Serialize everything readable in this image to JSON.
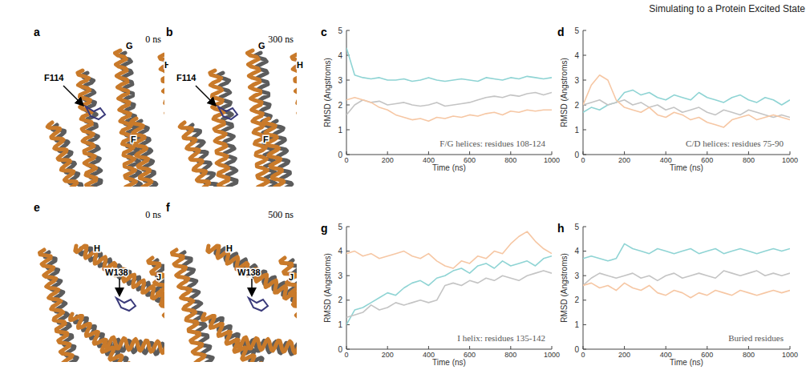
{
  "header": "Simulating to a Protein Excited State",
  "images": [
    {
      "letter": "a",
      "time": "0 ns",
      "labels": [
        "F114",
        "G",
        "H",
        "F"
      ]
    },
    {
      "letter": "b",
      "time": "300 ns",
      "labels": [
        "F114",
        "G",
        "H",
        "F"
      ]
    },
    {
      "letter": "e",
      "time": "0 ns",
      "labels": [
        "H",
        "W138",
        "J"
      ]
    },
    {
      "letter": "f",
      "time": "500 ns",
      "labels": [
        "H",
        "W138",
        "J"
      ]
    }
  ],
  "chart_data": [
    {
      "type": "line",
      "panel_label": "c",
      "annotation": "F/G helices: residues 108-124",
      "x_label": "Time (ns)",
      "y_label": "RMSD (Angstroms)",
      "xlim": [
        0,
        1000
      ],
      "xticks": [
        0,
        200,
        400,
        600,
        800,
        1000
      ],
      "ylim": [
        0,
        5
      ],
      "yticks": [
        0,
        1,
        2,
        3,
        4,
        5
      ],
      "x": [
        0,
        40,
        80,
        120,
        160,
        200,
        240,
        280,
        320,
        360,
        400,
        440,
        480,
        520,
        560,
        600,
        640,
        680,
        720,
        760,
        800,
        840,
        880,
        920,
        960,
        1000
      ],
      "series": [
        {
          "color": "#8fd4d4",
          "values": [
            4.3,
            3.2,
            3.1,
            3.05,
            3.1,
            3.0,
            3.0,
            3.05,
            2.95,
            3.0,
            3.1,
            3.0,
            2.95,
            3.0,
            3.05,
            3.0,
            2.95,
            3.1,
            3.05,
            3.0,
            3.1,
            3.05,
            3.15,
            3.1,
            3.05,
            3.1
          ]
        },
        {
          "color": "#c4c4c4",
          "values": [
            1.6,
            2.0,
            2.2,
            2.1,
            2.15,
            2.0,
            2.05,
            2.1,
            2.0,
            1.95,
            2.0,
            2.1,
            1.95,
            2.0,
            2.05,
            2.1,
            2.2,
            2.3,
            2.35,
            2.3,
            2.4,
            2.35,
            2.45,
            2.5,
            2.4,
            2.5
          ]
        },
        {
          "color": "#f6c7a4",
          "values": [
            2.2,
            2.3,
            2.2,
            2.1,
            1.9,
            1.8,
            1.6,
            1.5,
            1.4,
            1.45,
            1.35,
            1.5,
            1.45,
            1.55,
            1.5,
            1.6,
            1.55,
            1.65,
            1.7,
            1.6,
            1.75,
            1.7,
            1.8,
            1.75,
            1.8,
            1.8
          ]
        }
      ]
    },
    {
      "type": "line",
      "panel_label": "d",
      "annotation": "C/D helices: residues 75-90",
      "x_label": "Time (ns)",
      "y_label": "RMSD (Angstroms)",
      "xlim": [
        0,
        1000
      ],
      "xticks": [
        0,
        200,
        400,
        600,
        800,
        1000
      ],
      "ylim": [
        0,
        5
      ],
      "yticks": [
        0,
        1,
        2,
        3,
        4,
        5
      ],
      "x": [
        0,
        40,
        80,
        120,
        160,
        200,
        240,
        280,
        320,
        360,
        400,
        440,
        480,
        520,
        560,
        600,
        640,
        680,
        720,
        760,
        800,
        840,
        880,
        920,
        960,
        1000
      ],
      "series": [
        {
          "color": "#8fd4d4",
          "values": [
            1.7,
            1.9,
            1.8,
            2.0,
            2.1,
            2.5,
            2.6,
            2.4,
            2.5,
            2.3,
            2.2,
            2.4,
            2.3,
            2.2,
            2.5,
            2.3,
            2.2,
            2.1,
            2.3,
            2.4,
            2.2,
            2.1,
            2.3,
            2.2,
            2.0,
            2.2
          ]
        },
        {
          "color": "#c4c4c4",
          "values": [
            2.0,
            2.1,
            2.2,
            2.0,
            2.1,
            2.2,
            2.0,
            2.1,
            1.9,
            2.0,
            1.8,
            1.9,
            1.7,
            1.8,
            1.9,
            1.7,
            1.6,
            1.8,
            1.7,
            1.6,
            1.8,
            1.7,
            1.6,
            1.5,
            1.6,
            1.5
          ]
        },
        {
          "color": "#f6c7a4",
          "values": [
            2.0,
            2.8,
            3.2,
            3.0,
            2.2,
            1.9,
            1.8,
            1.7,
            1.9,
            1.6,
            1.5,
            1.7,
            1.6,
            1.4,
            1.5,
            1.3,
            1.2,
            1.1,
            1.4,
            1.5,
            1.6,
            1.4,
            1.5,
            1.6,
            1.5,
            1.4
          ]
        }
      ]
    },
    {
      "type": "line",
      "panel_label": "g",
      "annotation": "I helix: residues 135-142",
      "x_label": "Time (ns)",
      "y_label": "RMSD (Angstroms)",
      "xlim": [
        0,
        1000
      ],
      "xticks": [
        0,
        200,
        400,
        600,
        800,
        1000
      ],
      "ylim": [
        0,
        5
      ],
      "yticks": [
        0,
        1,
        2,
        3,
        4,
        5
      ],
      "x": [
        0,
        40,
        80,
        120,
        160,
        200,
        240,
        280,
        320,
        360,
        400,
        440,
        480,
        520,
        560,
        600,
        640,
        680,
        720,
        760,
        800,
        840,
        880,
        920,
        960,
        1000
      ],
      "series": [
        {
          "color": "#8fd4d4",
          "values": [
            1.0,
            1.6,
            1.7,
            1.9,
            2.1,
            2.3,
            2.2,
            2.5,
            2.7,
            2.8,
            2.6,
            2.9,
            3.0,
            3.2,
            3.3,
            3.1,
            3.4,
            3.5,
            3.3,
            3.6,
            3.4,
            3.5,
            3.6,
            3.4,
            3.7,
            3.8
          ]
        },
        {
          "color": "#c4c4c4",
          "values": [
            1.3,
            1.4,
            1.5,
            1.8,
            1.6,
            1.7,
            1.9,
            1.8,
            1.9,
            2.0,
            1.9,
            2.0,
            2.6,
            2.7,
            2.6,
            2.8,
            2.7,
            2.9,
            2.8,
            3.0,
            2.9,
            2.8,
            3.0,
            3.1,
            3.2,
            3.1
          ]
        },
        {
          "color": "#f6c7a4",
          "values": [
            3.9,
            4.0,
            3.8,
            3.9,
            3.7,
            3.8,
            3.9,
            4.0,
            3.8,
            3.7,
            3.9,
            3.6,
            3.4,
            3.3,
            3.6,
            3.5,
            3.8,
            3.7,
            4.0,
            3.9,
            4.3,
            4.6,
            4.8,
            4.4,
            4.1,
            3.9
          ]
        }
      ]
    },
    {
      "type": "line",
      "panel_label": "h",
      "annotation": "Buried residues",
      "x_label": "Time (ns)",
      "y_label": "RMSD (Angstroms)",
      "xlim": [
        0,
        1000
      ],
      "xticks": [
        0,
        200,
        400,
        600,
        800,
        1000
      ],
      "ylim": [
        0,
        5
      ],
      "yticks": [
        0,
        1,
        2,
        3,
        4,
        5
      ],
      "x": [
        0,
        40,
        80,
        120,
        160,
        200,
        240,
        280,
        320,
        360,
        400,
        440,
        480,
        520,
        560,
        600,
        640,
        680,
        720,
        760,
        800,
        840,
        880,
        920,
        960,
        1000
      ],
      "series": [
        {
          "color": "#8fd4d4",
          "values": [
            3.7,
            3.8,
            3.7,
            3.6,
            3.7,
            4.3,
            4.1,
            4.0,
            3.9,
            4.1,
            4.0,
            3.9,
            4.0,
            4.1,
            3.9,
            4.0,
            4.1,
            3.9,
            4.0,
            4.1,
            4.0,
            3.9,
            4.0,
            4.1,
            4.0,
            4.1
          ]
        },
        {
          "color": "#c4c4c4",
          "values": [
            2.6,
            2.9,
            3.1,
            3.0,
            2.9,
            3.0,
            3.1,
            2.9,
            3.0,
            2.8,
            3.0,
            3.1,
            2.9,
            3.0,
            3.1,
            3.0,
            2.9,
            3.2,
            3.1,
            3.0,
            3.1,
            3.2,
            3.0,
            3.1,
            3.0,
            3.1
          ]
        },
        {
          "color": "#f6c7a4",
          "values": [
            2.6,
            2.7,
            2.5,
            2.6,
            2.4,
            2.7,
            2.5,
            2.4,
            2.6,
            2.3,
            2.2,
            2.4,
            2.3,
            2.1,
            2.3,
            2.2,
            2.4,
            2.3,
            2.2,
            2.4,
            2.3,
            2.2,
            2.3,
            2.4,
            2.3,
            2.4
          ]
        }
      ]
    }
  ]
}
